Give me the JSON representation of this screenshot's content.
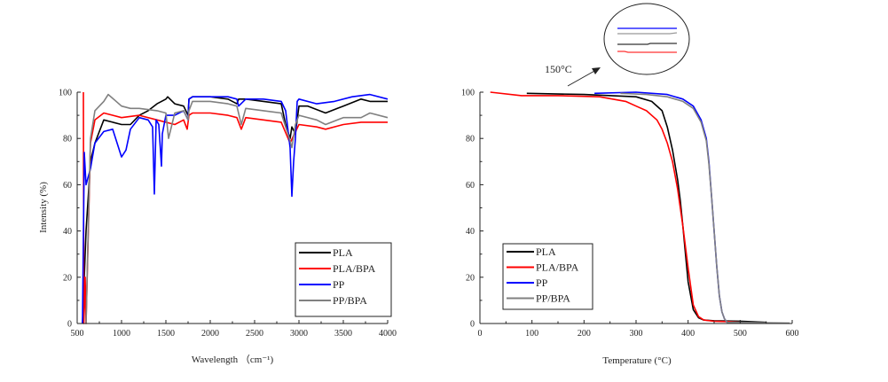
{
  "chart_data": [
    {
      "type": "line",
      "title": "",
      "xlabel": "Wavelength （cm⁻¹)",
      "ylabel": "Intensity (%)",
      "xlim": [
        500,
        4000
      ],
      "ylim": [
        0,
        100
      ],
      "xticks": [
        "500",
        "1000",
        "1500",
        "2000",
        "2500",
        "3000",
        "3500",
        "4000"
      ],
      "xtick_values": [
        500,
        1000,
        1500,
        2000,
        2500,
        3000,
        3500,
        4000
      ],
      "yticks": [
        "0",
        "20",
        "40",
        "60",
        "80",
        "100"
      ],
      "ytick_values": [
        0,
        20,
        40,
        60,
        80,
        100
      ],
      "grid": false,
      "legend_position": "bottom-right",
      "series": [
        {
          "name": "PLA",
          "color": "#000000",
          "x": [
            560,
            600,
            650,
            700,
            800,
            900,
            1000,
            1100,
            1200,
            1300,
            1400,
            1500,
            1520,
            1600,
            1700,
            1750,
            1760,
            1800,
            2000,
            2200,
            2300,
            2320,
            2400,
            2600,
            2800,
            2850,
            2900,
            2920,
            2960,
            3000,
            3100,
            3300,
            3500,
            3700,
            3800,
            4000
          ],
          "y": [
            0,
            40,
            70,
            78,
            88,
            87,
            86,
            86,
            90,
            92,
            95,
            97,
            98,
            95,
            94,
            90,
            97,
            98,
            98,
            97,
            95,
            97,
            97,
            96,
            95,
            86,
            80,
            85,
            82,
            94,
            94,
            91,
            94,
            97,
            96,
            96
          ]
        },
        {
          "name": "PLA/BPA",
          "color": "#ff0000",
          "x": [
            570,
            575,
            590,
            600,
            650,
            700,
            800,
            1000,
            1200,
            1400,
            1600,
            1700,
            1740,
            1760,
            1800,
            2000,
            2200,
            2300,
            2350,
            2400,
            2600,
            2800,
            2900,
            3000,
            3200,
            3300,
            3500,
            3700,
            3800,
            4000
          ],
          "y": [
            100,
            0,
            20,
            0,
            78,
            88,
            91,
            89,
            90,
            88,
            86,
            88,
            84,
            90,
            91,
            91,
            90,
            89,
            84,
            89,
            88,
            87,
            78,
            86,
            85,
            84,
            86,
            87,
            87,
            87
          ]
        },
        {
          "name": "PP",
          "color": "#0000ff",
          "x": [
            560,
            580,
            600,
            650,
            700,
            800,
            900,
            1000,
            1050,
            1100,
            1200,
            1300,
            1350,
            1370,
            1390,
            1420,
            1450,
            1460,
            1500,
            1600,
            1700,
            1750,
            1760,
            1800,
            2000,
            2200,
            2300,
            2320,
            2400,
            2600,
            2800,
            2850,
            2900,
            2920,
            2940,
            2960,
            2980,
            3000,
            3200,
            3400,
            3600,
            3800,
            4000
          ],
          "y": [
            0,
            74,
            60,
            67,
            78,
            83,
            84,
            72,
            75,
            84,
            89,
            88,
            85,
            56,
            88,
            86,
            68,
            82,
            90,
            90,
            92,
            88,
            97,
            98,
            98,
            98,
            97,
            94,
            97,
            97,
            96,
            92,
            76,
            55,
            70,
            80,
            96,
            97,
            95,
            96,
            98,
            99,
            97
          ]
        },
        {
          "name": "PP/BPA",
          "color": "#808080",
          "x": [
            600,
            620,
            650,
            700,
            800,
            850,
            1000,
            1100,
            1200,
            1400,
            1500,
            1530,
            1600,
            1700,
            1750,
            1760,
            1800,
            2000,
            2200,
            2300,
            2350,
            2400,
            2600,
            2800,
            2850,
            2900,
            2920,
            2960,
            3000,
            3200,
            3300,
            3500,
            3600,
            3700,
            3800,
            4000
          ],
          "y": [
            0,
            33,
            80,
            92,
            96,
            99,
            94,
            93,
            93,
            92,
            91,
            80,
            91,
            92,
            88,
            92,
            96,
            96,
            95,
            94,
            86,
            93,
            92,
            91,
            85,
            79,
            76,
            86,
            90,
            88,
            86,
            89,
            89,
            89,
            91,
            89
          ]
        }
      ],
      "legend": [
        "PLA",
        "PLA/BPA",
        "PP",
        "PP/BPA"
      ]
    },
    {
      "type": "line",
      "title": "",
      "xlabel": "Temperature (°C)",
      "ylabel": "",
      "xlim": [
        0,
        600
      ],
      "ylim": [
        0,
        100
      ],
      "xticks": [
        "0",
        "100",
        "200",
        "300",
        "400",
        "500",
        "600"
      ],
      "xtick_values": [
        0,
        100,
        200,
        300,
        400,
        500,
        600
      ],
      "yticks": [
        "0",
        "20",
        "40",
        "60",
        "80",
        "100"
      ],
      "ytick_values": [
        0,
        20,
        40,
        60,
        80,
        100
      ],
      "grid": false,
      "legend_position": "bottom-left",
      "annotation": {
        "text": "150°C",
        "inset": "zoomed view of curves near 150°C"
      },
      "series": [
        {
          "name": "PLA",
          "color": "#000000",
          "x": [
            90,
            200,
            300,
            330,
            350,
            360,
            370,
            380,
            385,
            390,
            395,
            400,
            410,
            420,
            430,
            450,
            500,
            550
          ],
          "y": [
            99.5,
            99,
            98,
            96,
            92,
            85,
            75,
            62,
            53,
            42,
            30,
            18,
            6,
            2.5,
            1.5,
            1.2,
            1,
            0.5
          ]
        },
        {
          "name": "PLA/BPA",
          "color": "#ff0000",
          "x": [
            20,
            80,
            150,
            230,
            280,
            300,
            320,
            340,
            350,
            360,
            370,
            380,
            390,
            400,
            410,
            420,
            430,
            450,
            480,
            500
          ],
          "y": [
            100,
            98.5,
            98.5,
            98,
            96,
            94,
            92,
            88,
            84,
            78,
            70,
            58,
            42,
            24,
            8,
            3,
            1.5,
            1,
            0.8,
            0.5
          ]
        },
        {
          "name": "PP",
          "color": "#0000ff",
          "x": [
            220,
            300,
            360,
            390,
            410,
            425,
            435,
            440,
            445,
            450,
            455,
            460,
            465,
            470,
            475
          ],
          "y": [
            99.5,
            100,
            99,
            97,
            94,
            88,
            80,
            70,
            55,
            40,
            25,
            12,
            5,
            2,
            0.5
          ]
        },
        {
          "name": "PP/BPA",
          "color": "#808080",
          "x": [
            270,
            320,
            360,
            390,
            410,
            425,
            435,
            440,
            445,
            450,
            455,
            460,
            465,
            470,
            475,
            500,
            550,
            595
          ],
          "y": [
            99.5,
            99,
            98,
            96,
            93,
            87,
            79,
            69,
            55,
            40,
            25,
            12,
            5,
            2,
            0.5,
            0.5,
            0.3,
            0.2
          ]
        }
      ],
      "legend": [
        "PLA",
        "PLA/BPA",
        "PP",
        "PP/BPA"
      ]
    }
  ]
}
